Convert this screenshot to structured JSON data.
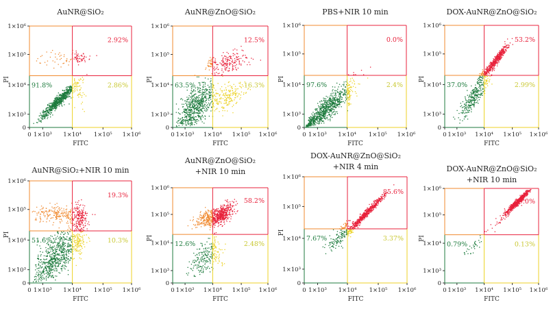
{
  "chart_data": [
    {
      "type": "scatter",
      "title": [
        "AuNR@SiO₂"
      ],
      "xlabel": "FITC",
      "ylabel": "PI",
      "quadrants": {
        "upper_right": "2.92%",
        "lower_left": "91.8%",
        "lower_right": "2.86%"
      }
    },
    {
      "type": "scatter",
      "title": [
        "AuNR@ZnO@SiO₂"
      ],
      "xlabel": "FITC",
      "ylabel": "PI",
      "quadrants": {
        "upper_right": "12.5%",
        "lower_left": "63.5%",
        "lower_right": "16.3%"
      }
    },
    {
      "type": "scatter",
      "title": [
        "PBS+NIR 10 min"
      ],
      "xlabel": "FITC",
      "ylabel": "PI",
      "quadrants": {
        "upper_right": "0.0%",
        "lower_left": "97.6%",
        "lower_right": "2.4%"
      }
    },
    {
      "type": "scatter",
      "title": [
        "DOX-AuNR@ZnO@SiO₂"
      ],
      "xlabel": "FITC",
      "ylabel": "PI",
      "quadrants": {
        "upper_right": "53.2%",
        "lower_left": "37.0%",
        "lower_right": "2.99%"
      }
    },
    {
      "type": "scatter",
      "title": [
        "AuNR@SiO₂+NIR 10 min"
      ],
      "xlabel": "FITC",
      "ylabel": "PI",
      "quadrants": {
        "upper_right": "19.3%",
        "lower_left": "51.6%",
        "lower_right": "10.3%"
      }
    },
    {
      "type": "scatter",
      "title": [
        "AuNR@ZnO@SiO₂",
        "+NIR 10 min"
      ],
      "xlabel": "FITC",
      "ylabel": "PI",
      "quadrants": {
        "upper_right": "58.2%",
        "lower_left": "12.6%",
        "lower_right": "2.48%"
      }
    },
    {
      "type": "scatter",
      "title": [
        "DOX-AuNR@ZnO@SiO₂",
        "+NIR 4 min"
      ],
      "xlabel": "FITC",
      "ylabel": "PI",
      "quadrants": {
        "upper_right": "85.6%",
        "lower_left": "7.67%",
        "lower_right": "3.37%"
      }
    },
    {
      "type": "scatter",
      "title": [
        "DOX-AuNR@ZnO@SiO₂",
        "+NIR 10 min"
      ],
      "xlabel": "FITC",
      "ylabel": "PI",
      "quadrants": {
        "upper_right": "99.0%",
        "lower_left": "0.79%",
        "lower_right": "0.13%"
      }
    }
  ],
  "axes": {
    "x_ticks": [
      "0",
      "1×10³",
      "1×10⁴",
      "1×10⁵",
      "1×10⁶"
    ],
    "y_ticks": [
      "0",
      "1×10³",
      "1×10⁴",
      "1×10⁵",
      "1×10⁶"
    ],
    "scale": "biexponential",
    "x_gate": "1×10⁴",
    "y_gate": "2×10⁴"
  },
  "colors": {
    "upper_left": "#f0892e",
    "upper_right": "#e8213b",
    "lower_left": "#1c7a3c",
    "lower_right": "#ecd224",
    "text": "#222222"
  }
}
